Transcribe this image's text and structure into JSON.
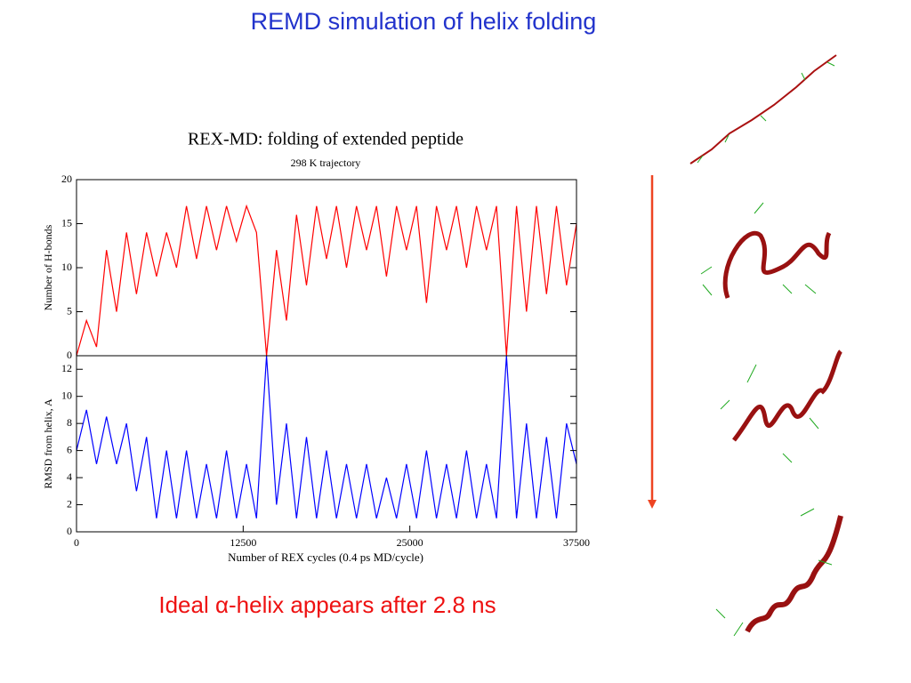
{
  "slide": {
    "title": "REMD simulation of helix folding",
    "caption": "Ideal α-helix appears after 2.8 ns"
  },
  "chart_data": [
    {
      "type": "line",
      "title": "REX-MD: folding of extended peptide",
      "subtitle": "298 K trajectory",
      "y_label": "Number of H-bonds",
      "color": "#ff0000",
      "x": [
        0,
        750,
        1500,
        2250,
        3000,
        3750,
        4500,
        5250,
        6000,
        6750,
        7500,
        8250,
        9000,
        9750,
        10500,
        11250,
        12000,
        12750,
        13500,
        14250,
        15000,
        15750,
        16500,
        17250,
        18000,
        18750,
        19500,
        20250,
        21000,
        21750,
        22500,
        23250,
        24000,
        24750,
        25500,
        26250,
        27000,
        27750,
        28500,
        29250,
        30000,
        30750,
        31500,
        32250,
        33000,
        33750,
        34500,
        35250,
        36000,
        36750,
        37500
      ],
      "values": [
        0,
        4,
        1,
        12,
        5,
        14,
        7,
        14,
        9,
        14,
        10,
        17,
        11,
        17,
        12,
        17,
        13,
        17,
        14,
        0,
        12,
        4,
        16,
        8,
        17,
        11,
        17,
        10,
        17,
        12,
        17,
        9,
        17,
        12,
        17,
        6,
        17,
        12,
        17,
        10,
        17,
        12,
        17,
        0,
        17,
        5,
        17,
        7,
        17,
        8,
        15
      ],
      "xlim": [
        0,
        37500
      ],
      "ylim": [
        0,
        20
      ],
      "yticks": [
        0,
        5,
        10,
        15,
        20
      ]
    },
    {
      "type": "line",
      "y_label": "RMSD from helix, A",
      "x_label": "Number of REX cycles  (0.4 ps MD/cycle)",
      "color": "#0000ff",
      "x": [
        0,
        750,
        1500,
        2250,
        3000,
        3750,
        4500,
        5250,
        6000,
        6750,
        7500,
        8250,
        9000,
        9750,
        10500,
        11250,
        12000,
        12750,
        13500,
        14250,
        15000,
        15750,
        16500,
        17250,
        18000,
        18750,
        19500,
        20250,
        21000,
        21750,
        22500,
        23250,
        24000,
        24750,
        25500,
        26250,
        27000,
        27750,
        28500,
        29250,
        30000,
        30750,
        31500,
        32250,
        33000,
        33750,
        34500,
        35250,
        36000,
        36750,
        37500
      ],
      "values": [
        6,
        9,
        5,
        8.5,
        5,
        8,
        3,
        7,
        1,
        6,
        1,
        6,
        1,
        5,
        1,
        6,
        1,
        5,
        1,
        13,
        2,
        8,
        1,
        7,
        1,
        6,
        1,
        5,
        1,
        5,
        1,
        4,
        1,
        5,
        1,
        6,
        1,
        5,
        1,
        6,
        1,
        5,
        1,
        13,
        1,
        8,
        1,
        7,
        1,
        8,
        5
      ],
      "xlim": [
        0,
        37500
      ],
      "xticks": [
        0,
        12500,
        25000,
        37500
      ],
      "ylim": [
        0,
        13
      ],
      "yticks": [
        0,
        2,
        4,
        6,
        8,
        10,
        12
      ]
    }
  ]
}
